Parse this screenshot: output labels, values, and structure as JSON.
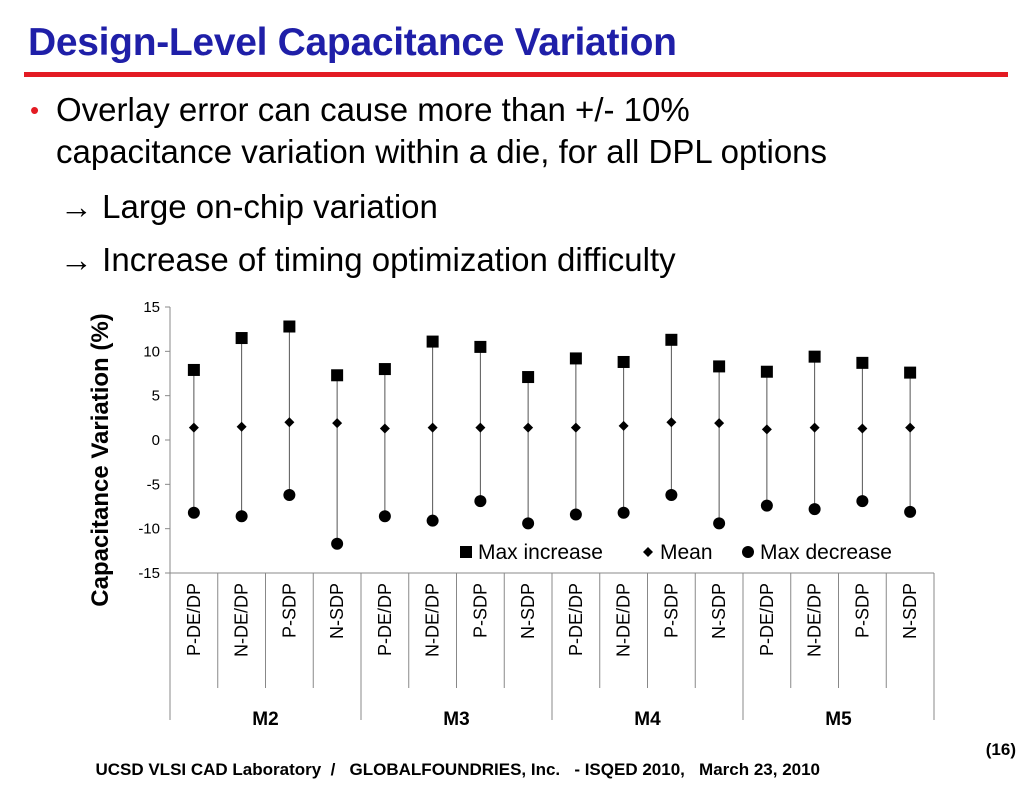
{
  "slide": {
    "title": "Design-Level Capacitance Variation",
    "accent_color": "#1f1fa8",
    "rule_color": "#e31b23",
    "bullet_color": "#e31b23",
    "bullet_line1": "Overlay error can cause more than +/- 10%",
    "bullet_line2": "capacitance variation within a die, for all DPL options",
    "arrow_icon": "→",
    "sub1": "Large on-chip variation",
    "sub2": "Increase of timing optimization difficulty"
  },
  "footer": {
    "text": "UCSD VLSI CAD Laboratory  /   GLOBALFOUNDRIES, Inc.   - ISQED 2010,   March 23, 2010",
    "page": "(16)"
  },
  "chart_data": {
    "type": "scatter",
    "title": "",
    "ylabel": "Capacitance Variation (%)",
    "ylim": [
      -15,
      15
    ],
    "yticks": [
      15,
      10,
      5,
      0,
      -5,
      -10,
      -15
    ],
    "categories": [
      "P-DE/DP",
      "N-DE/DP",
      "P-SDP",
      "N-SDP",
      "P-DE/DP",
      "N-DE/DP",
      "P-SDP",
      "N-SDP",
      "P-DE/DP",
      "N-DE/DP",
      "P-SDP",
      "N-SDP",
      "P-DE/DP",
      "N-DE/DP",
      "P-SDP",
      "N-SDP"
    ],
    "groups": [
      "M2",
      "M3",
      "M4",
      "M5"
    ],
    "series": [
      {
        "name": "Max increase",
        "marker": "square",
        "values": [
          7.9,
          11.5,
          12.8,
          7.3,
          8.0,
          11.1,
          10.5,
          7.1,
          9.2,
          8.8,
          11.3,
          8.3,
          7.7,
          9.4,
          8.7,
          7.6
        ]
      },
      {
        "name": "Mean",
        "marker": "diamond",
        "values": [
          1.4,
          1.5,
          2.0,
          1.9,
          1.3,
          1.4,
          1.4,
          1.4,
          1.4,
          1.6,
          2.0,
          1.9,
          1.2,
          1.4,
          1.3,
          1.4
        ]
      },
      {
        "name": "Max decrease",
        "marker": "circle",
        "values": [
          -8.2,
          -8.6,
          -6.2,
          -11.7,
          -8.6,
          -9.1,
          -6.9,
          -9.4,
          -8.4,
          -8.2,
          -6.2,
          -9.4,
          -7.4,
          -7.8,
          -6.9,
          -8.1
        ]
      }
    ],
    "legend_position": "bottom-right"
  }
}
